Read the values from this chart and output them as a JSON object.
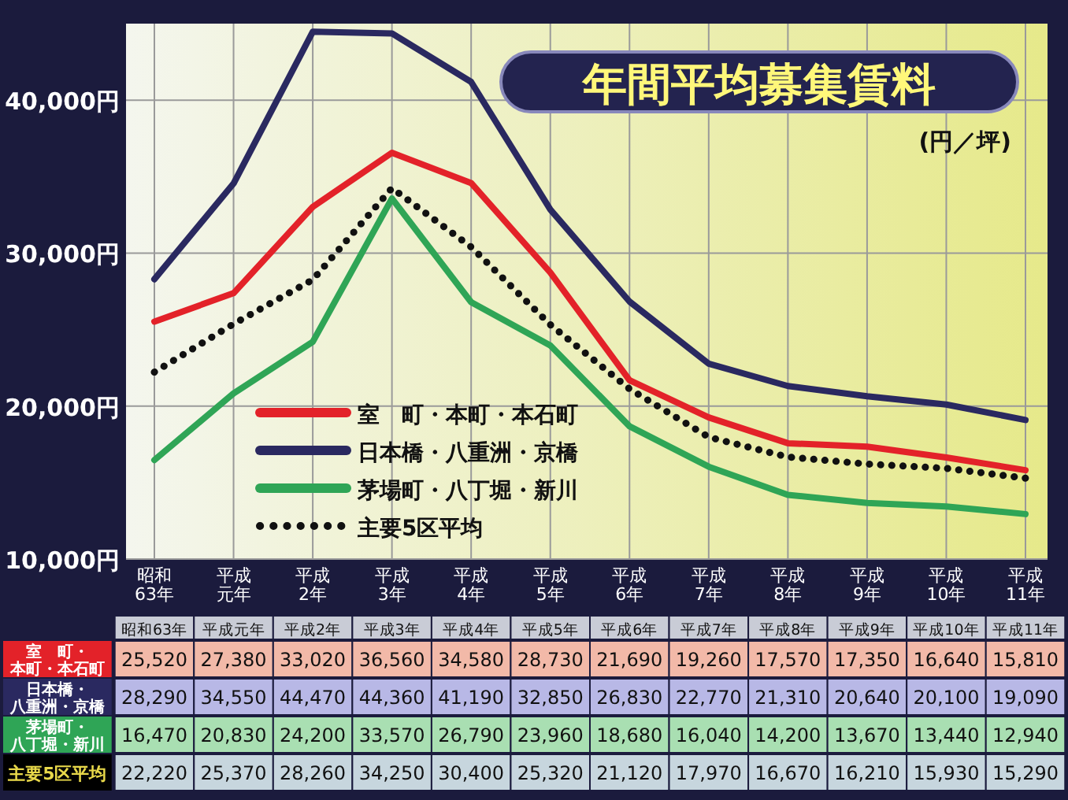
{
  "chart_data": {
    "type": "line",
    "title": "年間平均募集賃料",
    "ylabel": "(円／坪)",
    "categories": [
      "昭和63年",
      "平成元年",
      "平成2年",
      "平成3年",
      "平成4年",
      "平成5年",
      "平成6年",
      "平成7年",
      "平成8年",
      "平成9年",
      "平成10年",
      "平成11年"
    ],
    "series": [
      {
        "name": "室　町・本町・本石町",
        "color": "#e32229",
        "line_style": "solid",
        "values": [
          25520,
          27380,
          33020,
          36560,
          34580,
          28730,
          21690,
          19260,
          17570,
          17350,
          16640,
          15810
        ],
        "value_labels": [
          "25,520",
          "27,380",
          "33,020",
          "36,560",
          "34,580",
          "28,730",
          "21,690",
          "19,260",
          "17,570",
          "17,350",
          "16,640",
          "15,810"
        ]
      },
      {
        "name": "日本橋・八重洲・京橋",
        "color": "#2a2960",
        "line_style": "solid",
        "values": [
          28290,
          34550,
          44470,
          44360,
          41190,
          32850,
          26830,
          22770,
          21310,
          20640,
          20100,
          19090
        ],
        "value_labels": [
          "28,290",
          "34,550",
          "44,470",
          "44,360",
          "41,190",
          "32,850",
          "26,830",
          "22,770",
          "21,310",
          "20,640",
          "20,100",
          "19,090"
        ]
      },
      {
        "name": "茅場町・八丁堀・新川",
        "color": "#2fa556",
        "line_style": "solid",
        "values": [
          16470,
          20830,
          24200,
          33570,
          26790,
          23960,
          18680,
          16040,
          14200,
          13670,
          13440,
          12940
        ],
        "value_labels": [
          "16,470",
          "20,830",
          "24,200",
          "33,570",
          "26,790",
          "23,960",
          "18,680",
          "16,040",
          "14,200",
          "13,670",
          "13,440",
          "12,940"
        ]
      },
      {
        "name": "主要5区平均",
        "color": "#111111",
        "line_style": "dotted",
        "values": [
          22220,
          25370,
          28260,
          34250,
          30400,
          25320,
          21120,
          17970,
          16670,
          16210,
          15930,
          15290
        ],
        "value_labels": [
          "22,220",
          "25,370",
          "28,260",
          "34,250",
          "30,400",
          "25,320",
          "21,120",
          "17,970",
          "16,670",
          "16,210",
          "15,930",
          "15,290"
        ]
      }
    ],
    "ylim": [
      10000,
      45000
    ],
    "yticks": [
      {
        "value": 10000,
        "label": "10,000円"
      },
      {
        "value": 20000,
        "label": "20,000円"
      },
      {
        "value": 30000,
        "label": "30,000円"
      },
      {
        "value": 40000,
        "label": "40,000円"
      }
    ],
    "grid": true,
    "legend": "bottom left"
  }
}
